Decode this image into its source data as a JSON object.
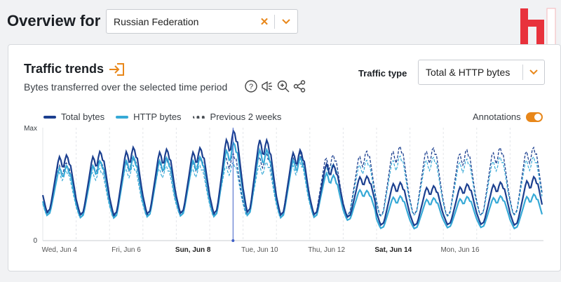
{
  "header": {
    "title": "Overview for",
    "location_select": {
      "value": "Russian Federation"
    }
  },
  "card": {
    "title": "Traffic trends",
    "subtitle": "Bytes transferred over the selected time period",
    "traffic_type": {
      "label": "Traffic type",
      "value": "Total & HTTP bytes"
    },
    "annotations_label": "Annotations",
    "annotations_on": true
  },
  "icons": {
    "title": "export-icon",
    "help": "help-icon",
    "megaphone": "megaphone-icon",
    "zoom": "zoom-icon",
    "share": "share-icon"
  },
  "colors": {
    "accent": "#e8871a",
    "total": "#1b3f8f",
    "http": "#36a9d6",
    "previous": "#4a4f55",
    "logo": "#e8323c"
  },
  "chart_data": {
    "type": "line",
    "title": "",
    "xlabel": "",
    "ylabel": "",
    "y_ticks": [
      "Max",
      "0"
    ],
    "ylim": [
      0,
      1
    ],
    "x_ticks": [
      {
        "label": "Wed, Jun 4",
        "bold": false
      },
      {
        "label": "Fri, Jun 6",
        "bold": false
      },
      {
        "label": "Sun, Jun 8",
        "bold": true
      },
      {
        "label": "Tue, Jun 10",
        "bold": false
      },
      {
        "label": "Thu, Jun 12",
        "bold": false
      },
      {
        "label": "Sat, Jun 14",
        "bold": true
      },
      {
        "label": "Mon, Jun 16",
        "bold": false
      }
    ],
    "legend": [
      {
        "name": "Total bytes",
        "color": "#1b3f8f",
        "style": "solid"
      },
      {
        "name": "HTTP bytes",
        "color": "#36a9d6",
        "style": "solid"
      },
      {
        "name": "Previous 2 weeks",
        "color": "#4a4f55",
        "style": "dashed"
      }
    ],
    "annotation_marker_day": 5,
    "days": 15,
    "series": [
      {
        "name": "Total bytes",
        "daily_peaks": [
          0.78,
          0.71,
          0.78,
          0.8,
          0.77,
          0.8,
          0.99,
          0.8,
          0.76,
          0.6,
          0.53,
          0.48,
          0.46,
          0.49,
          0.5,
          0.56
        ],
        "daily_troughs": [
          0.2,
          0.18,
          0.17,
          0.18,
          0.19,
          0.18,
          0.18,
          0.17,
          0.18,
          0.17,
          0.1,
          0.1,
          0.11,
          0.11,
          0.1,
          0.12
        ]
      },
      {
        "name": "HTTP bytes",
        "daily_peaks": [
          0.66,
          0.63,
          0.7,
          0.72,
          0.7,
          0.72,
          0.88,
          0.73,
          0.7,
          0.5,
          0.4,
          0.37,
          0.36,
          0.38,
          0.38,
          0.4
        ],
        "daily_troughs": [
          0.18,
          0.16,
          0.15,
          0.16,
          0.17,
          0.16,
          0.16,
          0.15,
          0.16,
          0.15,
          0.08,
          0.08,
          0.09,
          0.09,
          0.08,
          0.1
        ]
      },
      {
        "name": "Previous 2 weeks",
        "daily_peaks": [
          0.7,
          0.65,
          0.7,
          0.72,
          0.7,
          0.72,
          0.75,
          0.74,
          0.75,
          0.72,
          0.78,
          0.81,
          0.78,
          0.77,
          0.8,
          0.79
        ],
        "daily_troughs": [
          0.19,
          0.17,
          0.16,
          0.17,
          0.18,
          0.17,
          0.17,
          0.16,
          0.17,
          0.17,
          0.16,
          0.17,
          0.16,
          0.17,
          0.17,
          0.17
        ]
      }
    ]
  }
}
